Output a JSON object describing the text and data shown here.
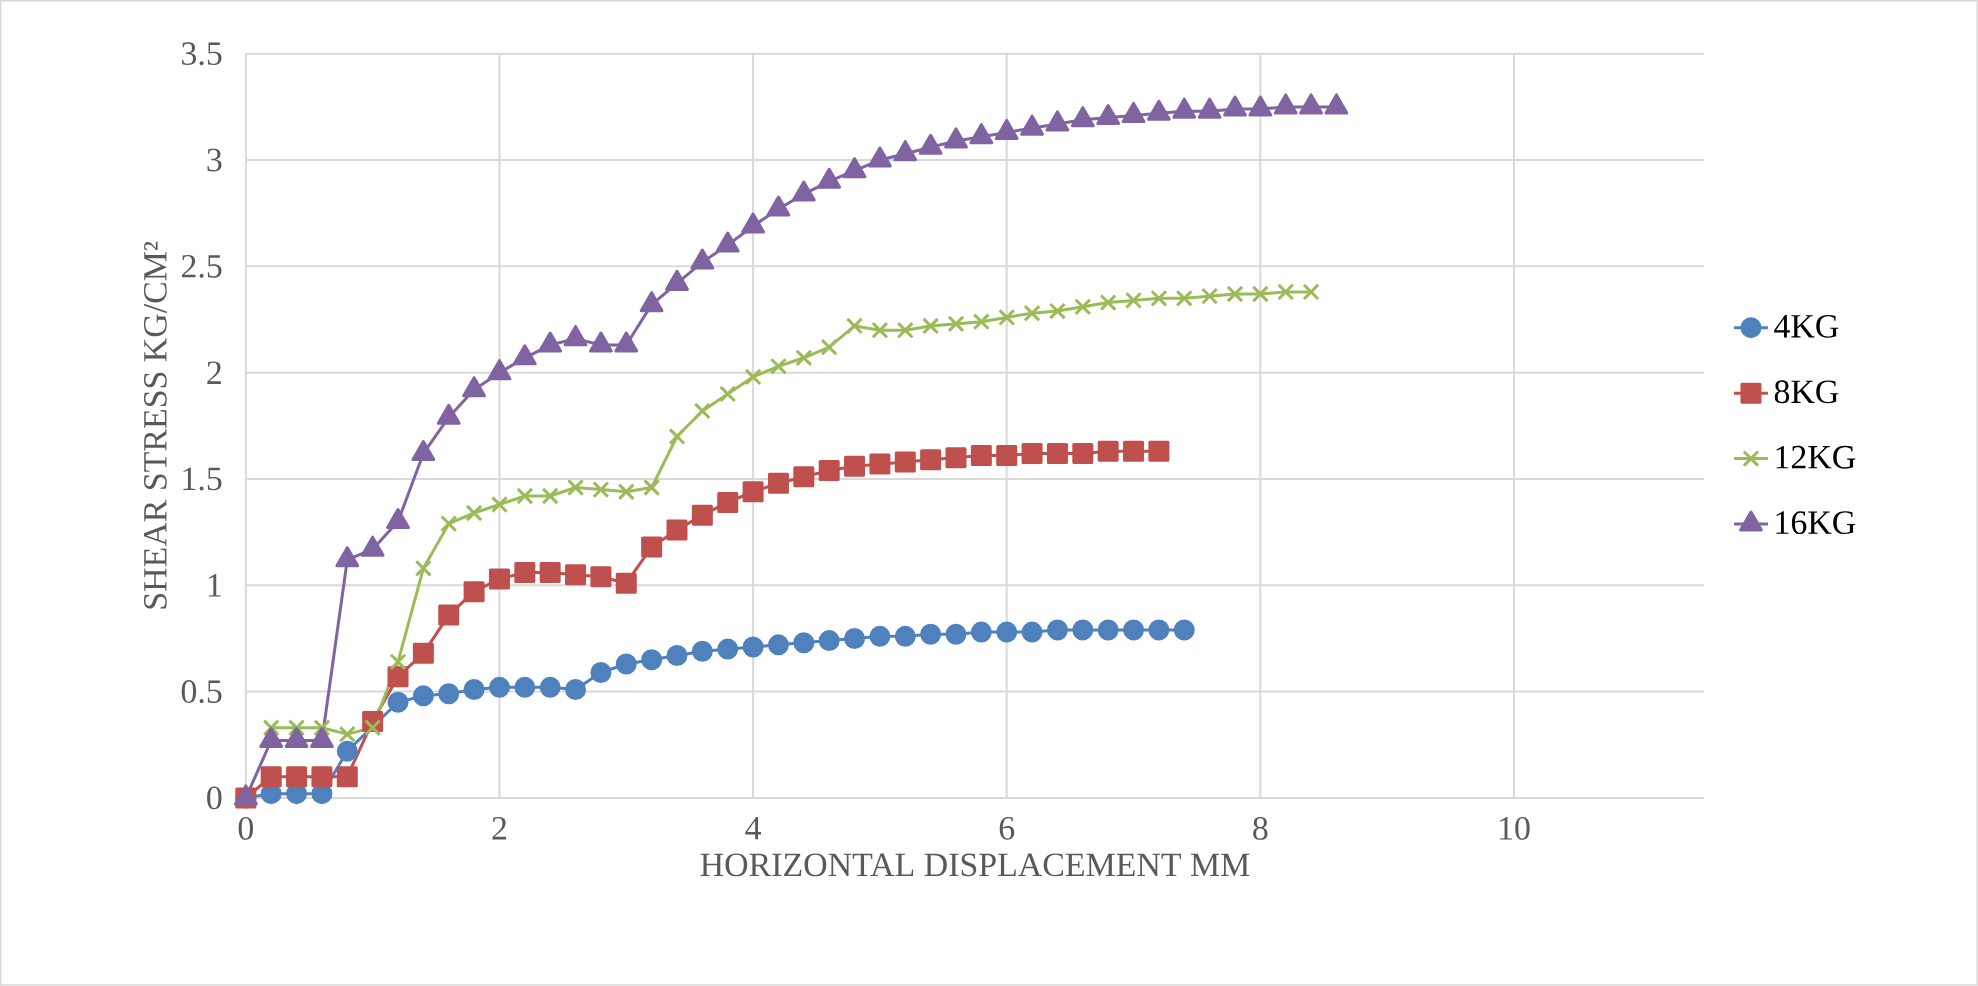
{
  "chart_data": {
    "type": "line",
    "xlabel": "HORIZONTAL DISPLACEMENT MM",
    "ylabel": "SHEAR STRESS KG/CM²",
    "xlim": [
      0,
      11.5
    ],
    "xticks": [
      0,
      2,
      4,
      6,
      8,
      10
    ],
    "ylim": [
      0,
      3.5
    ],
    "yticks": [
      0,
      0.5,
      1,
      1.5,
      2,
      2.5,
      3,
      3.5
    ],
    "grid": true,
    "legend": "right",
    "series": [
      {
        "name": "4KG",
        "color": "#4f81bd",
        "marker": "circle",
        "x": [
          0,
          0.2,
          0.4,
          0.6,
          0.8,
          1.0,
          1.2,
          1.4,
          1.6,
          1.8,
          2.0,
          2.2,
          2.4,
          2.6,
          2.8,
          3.0,
          3.2,
          3.4,
          3.6,
          3.8,
          4.0,
          4.2,
          4.4,
          4.6,
          4.8,
          5.0,
          5.2,
          5.4,
          5.6,
          5.8,
          6.0,
          6.2,
          6.4,
          6.6,
          6.8,
          7.0,
          7.2,
          7.4
        ],
        "values": [
          0,
          0.02,
          0.02,
          0.02,
          0.22,
          null,
          0.45,
          0.48,
          0.49,
          0.51,
          0.52,
          0.52,
          0.52,
          0.51,
          0.59,
          0.63,
          0.65,
          0.67,
          0.69,
          0.7,
          0.71,
          0.72,
          0.73,
          0.74,
          0.75,
          0.76,
          0.76,
          0.77,
          0.77,
          0.78,
          0.78,
          0.78,
          0.79,
          0.79,
          0.79,
          0.79,
          0.79,
          0.79
        ]
      },
      {
        "name": "8KG",
        "color": "#c0504d",
        "marker": "square",
        "x": [
          0,
          0.2,
          0.4,
          0.6,
          0.8,
          1.0,
          1.2,
          1.4,
          1.6,
          1.8,
          2.0,
          2.2,
          2.4,
          2.6,
          2.8,
          3.0,
          3.2,
          3.4,
          3.6,
          3.8,
          4.0,
          4.2,
          4.4,
          4.6,
          4.8,
          5.0,
          5.2,
          5.4,
          5.6,
          5.8,
          6.0,
          6.2,
          6.4,
          6.6,
          6.8,
          7.0,
          7.2
        ],
        "values": [
          0,
          0.1,
          0.1,
          0.1,
          0.1,
          0.36,
          0.57,
          0.68,
          0.86,
          0.97,
          1.03,
          1.06,
          1.06,
          1.05,
          1.04,
          1.01,
          1.18,
          1.26,
          1.33,
          1.39,
          1.44,
          1.48,
          1.51,
          1.54,
          1.56,
          1.57,
          1.58,
          1.59,
          1.6,
          1.61,
          1.61,
          1.62,
          1.62,
          1.62,
          1.63,
          1.63,
          1.63
        ]
      },
      {
        "name": "12KG",
        "color": "#9bbb59",
        "marker": "cross",
        "x": [
          0.2,
          0.4,
          0.6,
          0.8,
          1.0,
          1.2,
          1.4,
          1.6,
          1.8,
          2.0,
          2.2,
          2.4,
          2.6,
          2.8,
          3.0,
          3.2,
          3.4,
          3.6,
          3.8,
          4.0,
          4.2,
          4.4,
          4.6,
          4.8,
          5.0,
          5.2,
          5.4,
          5.6,
          5.8,
          6.0,
          6.2,
          6.4,
          6.6,
          6.8,
          7.0,
          7.2,
          7.4,
          7.6,
          7.8,
          8.0,
          8.2,
          8.4
        ],
        "values": [
          0.33,
          0.33,
          0.33,
          0.3,
          0.33,
          0.64,
          1.08,
          1.29,
          1.34,
          1.38,
          1.42,
          1.42,
          1.46,
          1.45,
          1.44,
          1.46,
          1.7,
          1.82,
          1.9,
          1.98,
          2.03,
          2.07,
          2.12,
          2.22,
          2.2,
          2.2,
          2.22,
          2.23,
          2.24,
          2.26,
          2.28,
          2.29,
          2.31,
          2.33,
          2.34,
          2.35,
          2.35,
          2.36,
          2.37,
          2.37,
          2.38,
          2.38
        ]
      },
      {
        "name": "16KG",
        "color": "#8064a2",
        "marker": "triangle",
        "x": [
          0,
          0.2,
          0.4,
          0.6,
          0.8,
          1.0,
          1.2,
          1.4,
          1.6,
          1.8,
          2.0,
          2.2,
          2.4,
          2.6,
          2.8,
          3.0,
          3.2,
          3.4,
          3.6,
          3.8,
          4.0,
          4.2,
          4.4,
          4.6,
          4.8,
          5.0,
          5.2,
          5.4,
          5.6,
          5.8,
          6.0,
          6.2,
          6.4,
          6.6,
          6.8,
          7.0,
          7.2,
          7.4,
          7.6,
          7.8,
          8.0,
          8.2,
          8.4,
          8.6
        ],
        "values": [
          0,
          0.27,
          0.27,
          0.27,
          1.12,
          1.17,
          1.3,
          1.62,
          1.79,
          1.92,
          2.0,
          2.07,
          2.13,
          2.16,
          2.13,
          2.13,
          2.32,
          2.42,
          2.52,
          2.6,
          2.69,
          2.77,
          2.84,
          2.9,
          2.95,
          3.0,
          3.03,
          3.06,
          3.09,
          3.11,
          3.13,
          3.15,
          3.17,
          3.19,
          3.2,
          3.21,
          3.22,
          3.23,
          3.23,
          3.24,
          3.24,
          3.25,
          3.25,
          3.25
        ]
      }
    ]
  }
}
